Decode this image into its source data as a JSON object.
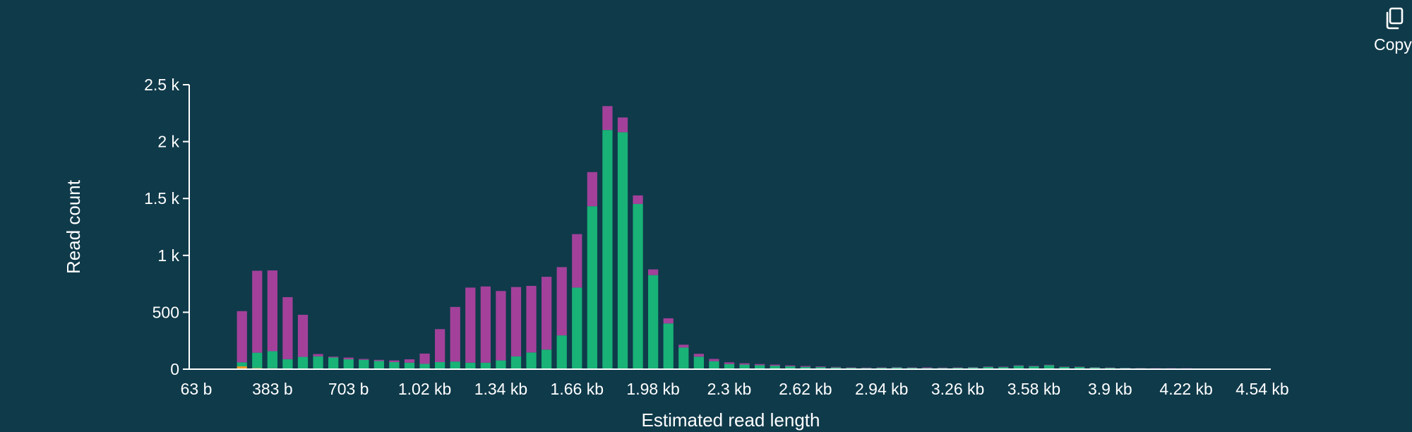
{
  "toolbar": {
    "copy_label": "Copy"
  },
  "icons": {
    "copy": "copy-icon"
  },
  "colors": {
    "background": "#0f3a4a",
    "axis": "#ffffff",
    "series_top": "#a3419a",
    "series_main": "#19b277",
    "series_low": "#e69b2c"
  },
  "chart_data": {
    "type": "bar",
    "stacked": true,
    "xlabel": "Estimated read length",
    "ylabel": "Read count",
    "ylim": [
      0,
      2500
    ],
    "yticks": [
      {
        "value": 0,
        "label": "0"
      },
      {
        "value": 500,
        "label": "500"
      },
      {
        "value": 1000,
        "label": "1 k"
      },
      {
        "value": 1500,
        "label": "1.5 k"
      },
      {
        "value": 2000,
        "label": "2 k"
      },
      {
        "value": 2500,
        "label": "2.5 k"
      }
    ],
    "xticks": [
      {
        "value": 63,
        "label": "63 b"
      },
      {
        "value": 383,
        "label": "383 b"
      },
      {
        "value": 703,
        "label": "703 b"
      },
      {
        "value": 1023,
        "label": "1.02 kb"
      },
      {
        "value": 1343,
        "label": "1.34 kb"
      },
      {
        "value": 1663,
        "label": "1.66 kb"
      },
      {
        "value": 1983,
        "label": "1.98 kb"
      },
      {
        "value": 2303,
        "label": "2.3 kb"
      },
      {
        "value": 2623,
        "label": "2.62 kb"
      },
      {
        "value": 2943,
        "label": "2.94 kb"
      },
      {
        "value": 3263,
        "label": "3.26 kb"
      },
      {
        "value": 3583,
        "label": "3.58 kb"
      },
      {
        "value": 3903,
        "label": "3.9 kb"
      },
      {
        "value": 4223,
        "label": "4.22 kb"
      },
      {
        "value": 4543,
        "label": "4.54 kb"
      }
    ],
    "xlim": [
      63,
      4543
    ],
    "bin_width": 64,
    "x": [
      255,
      319,
      383,
      447,
      511,
      575,
      639,
      703,
      767,
      831,
      895,
      959,
      1023,
      1087,
      1151,
      1215,
      1279,
      1343,
      1407,
      1471,
      1535,
      1599,
      1663,
      1727,
      1791,
      1855,
      1919,
      1983,
      2047,
      2111,
      2175,
      2239,
      2303,
      2367,
      2431,
      2495,
      2559,
      2623,
      2687,
      2751,
      2815,
      2879,
      2943,
      3007,
      3071,
      3135,
      3199,
      3263,
      3327,
      3391,
      3455,
      3519,
      3583,
      3647,
      3711,
      3775,
      3839,
      3903,
      3967,
      4031,
      4095,
      4159,
      4223,
      4287,
      4351,
      4415,
      4479
    ],
    "series": [
      {
        "color": "#e69b2c",
        "values": [
          25,
          10,
          8,
          3,
          3,
          3,
          2,
          2,
          2,
          2,
          2,
          2,
          2,
          2,
          2,
          2,
          2,
          2,
          2,
          2,
          2,
          2,
          2,
          2,
          2,
          2,
          2,
          2,
          2,
          0,
          0,
          0,
          0,
          0,
          0,
          0,
          0,
          0,
          0,
          0,
          0,
          0,
          0,
          0,
          0,
          0,
          0,
          0,
          0,
          0,
          0,
          0,
          0,
          0,
          0,
          0,
          0,
          0,
          0,
          0,
          0,
          0,
          0,
          0,
          0,
          0,
          0
        ]
      },
      {
        "color": "#19b277",
        "values": [
          35,
          135,
          150,
          85,
          105,
          110,
          100,
          85,
          80,
          70,
          60,
          55,
          45,
          60,
          65,
          55,
          55,
          75,
          110,
          145,
          170,
          295,
          715,
          1430,
          2100,
          2080,
          1450,
          825,
          400,
          190,
          110,
          70,
          45,
          40,
          35,
          30,
          25,
          20,
          18,
          15,
          12,
          10,
          12,
          15,
          12,
          10,
          10,
          12,
          15,
          20,
          18,
          30,
          25,
          35,
          20,
          20,
          15,
          12,
          10,
          8,
          6,
          6,
          6,
          4,
          4,
          3,
          3
        ]
      },
      {
        "color": "#a3419a",
        "values": [
          450,
          720,
          710,
          545,
          370,
          20,
          8,
          15,
          8,
          10,
          15,
          30,
          90,
          290,
          480,
          660,
          670,
          610,
          610,
          585,
          640,
          600,
          470,
          300,
          210,
          130,
          75,
          50,
          45,
          25,
          25,
          20,
          15,
          12,
          10,
          10,
          8,
          8,
          6,
          5,
          4,
          4,
          4,
          4,
          4,
          6,
          4,
          4,
          4,
          4,
          4,
          4,
          4,
          4,
          3,
          3,
          3,
          3,
          2,
          2,
          2,
          2,
          2,
          2,
          2,
          2,
          2
        ]
      }
    ]
  }
}
